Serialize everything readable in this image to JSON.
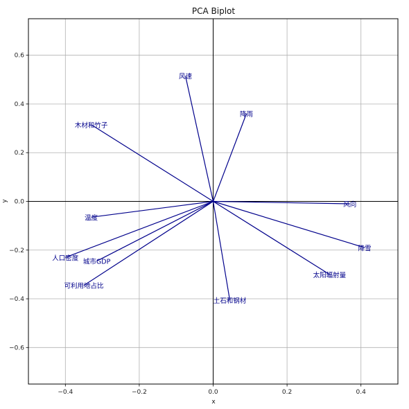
{
  "chart_data": {
    "type": "scatter",
    "subtype": "biplot",
    "title": "PCA Biplot",
    "xlabel": "x",
    "ylabel": "y",
    "xlim": [
      -0.5,
      0.5
    ],
    "ylim": [
      -0.75,
      0.75
    ],
    "xticks": [
      -0.4,
      -0.2,
      0.0,
      0.2,
      0.4
    ],
    "yticks": [
      -0.6,
      -0.4,
      -0.2,
      0.0,
      0.2,
      0.4,
      0.6
    ],
    "xtick_labels": [
      "−0.4",
      "−0.2",
      "0.0",
      "0.2",
      "0.4"
    ],
    "ytick_labels": [
      "−0.6",
      "−0.4",
      "−0.2",
      "0.0",
      "0.2",
      "0.4",
      "0.6"
    ],
    "grid": true,
    "vector_color": "#00008b",
    "vectors": [
      {
        "name": "风速",
        "x": -0.075,
        "y": 0.515
      },
      {
        "name": "降雨",
        "x": 0.09,
        "y": 0.36
      },
      {
        "name": "木材和竹子",
        "x": -0.33,
        "y": 0.315
      },
      {
        "name": "风向",
        "x": 0.37,
        "y": -0.01
      },
      {
        "name": "温度",
        "x": -0.33,
        "y": -0.065
      },
      {
        "name": "降雪",
        "x": 0.41,
        "y": -0.19
      },
      {
        "name": "人口密度",
        "x": -0.4,
        "y": -0.23
      },
      {
        "name": "城市GDP",
        "x": -0.315,
        "y": -0.245
      },
      {
        "name": "太阳辐射量",
        "x": 0.315,
        "y": -0.3
      },
      {
        "name": "可利用地占比",
        "x": -0.35,
        "y": -0.345
      },
      {
        "name": "土石和钢材",
        "x": 0.045,
        "y": -0.405
      }
    ]
  }
}
